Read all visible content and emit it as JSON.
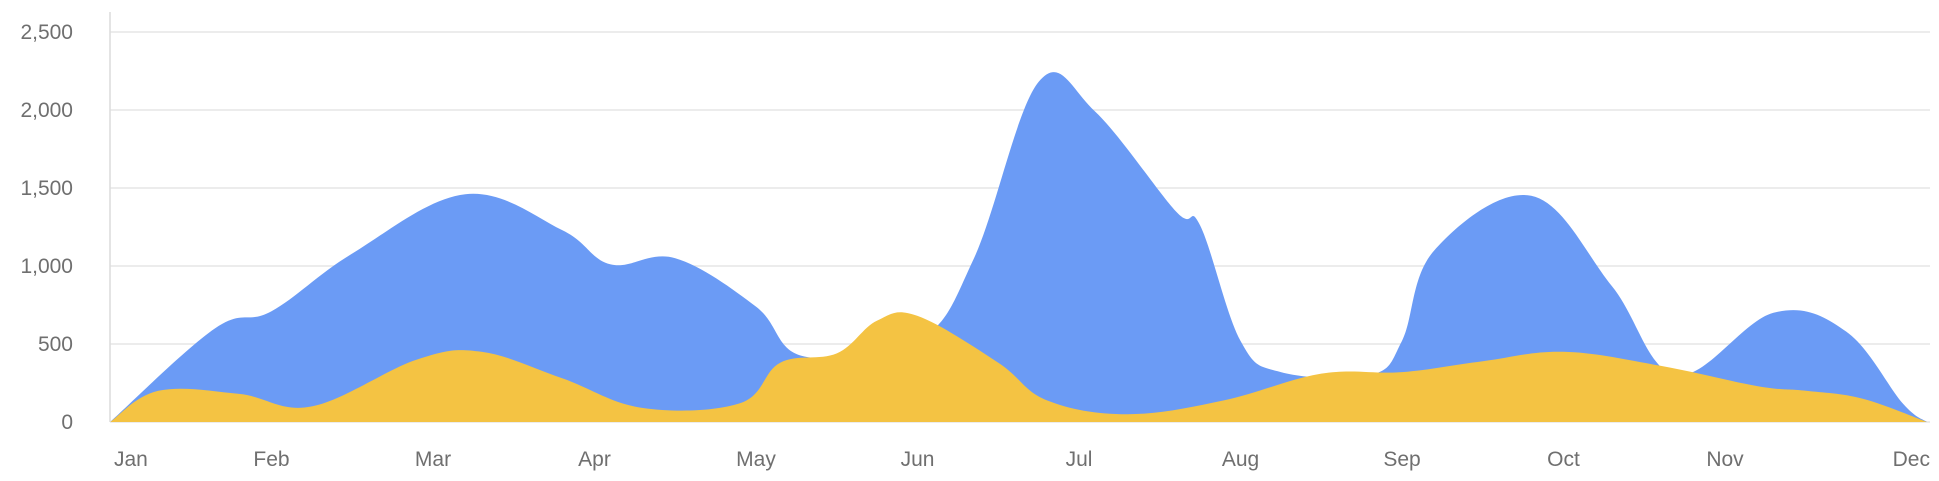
{
  "chart_data": {
    "type": "area",
    "title": "",
    "xlabel": "",
    "ylabel": "",
    "categories": [
      "Jan",
      "Feb",
      "Mar",
      "Apr",
      "May",
      "Jun",
      "Jul",
      "Aug",
      "Sep",
      "Oct",
      "Nov",
      "Dec"
    ],
    "yticks": [
      "0",
      "500",
      "1,000",
      "1,500",
      "2,000",
      "2,500"
    ],
    "ylim": [
      0,
      2500
    ],
    "grid": true,
    "legend": "none",
    "stacked": false,
    "series": [
      {
        "color": "#6b9bf5",
        "x": [
          0,
          0.65,
          1.0,
          1.5,
          2.2,
          2.8,
          3.1,
          3.5,
          4.0,
          4.3,
          5.0,
          5.35,
          5.75,
          6.1,
          6.6,
          6.75,
          7.0,
          7.25,
          7.8,
          8.0,
          8.2,
          8.8,
          9.3,
          9.7,
          10.3,
          10.75,
          11.1,
          11.25
        ],
        "values": [
          0,
          600,
          710,
          1080,
          1460,
          1230,
          1010,
          1050,
          740,
          420,
          520,
          1050,
          2180,
          1990,
          1350,
          1260,
          520,
          320,
          300,
          520,
          1100,
          1450,
          870,
          300,
          700,
          580,
          120,
          0
        ]
      },
      {
        "color": "#f4c343",
        "x": [
          0,
          0.3,
          0.8,
          1.25,
          1.9,
          2.3,
          2.8,
          3.3,
          3.9,
          4.15,
          4.5,
          4.75,
          5.0,
          5.5,
          5.8,
          6.3,
          6.9,
          7.5,
          8.0,
          8.5,
          9.0,
          9.6,
          10.2,
          10.5,
          10.85,
          11.25
        ],
        "values": [
          0,
          200,
          180,
          100,
          400,
          450,
          280,
          90,
          120,
          380,
          440,
          650,
          680,
          380,
          140,
          50,
          140,
          310,
          320,
          390,
          450,
          360,
          230,
          200,
          150,
          0
        ]
      }
    ]
  }
}
